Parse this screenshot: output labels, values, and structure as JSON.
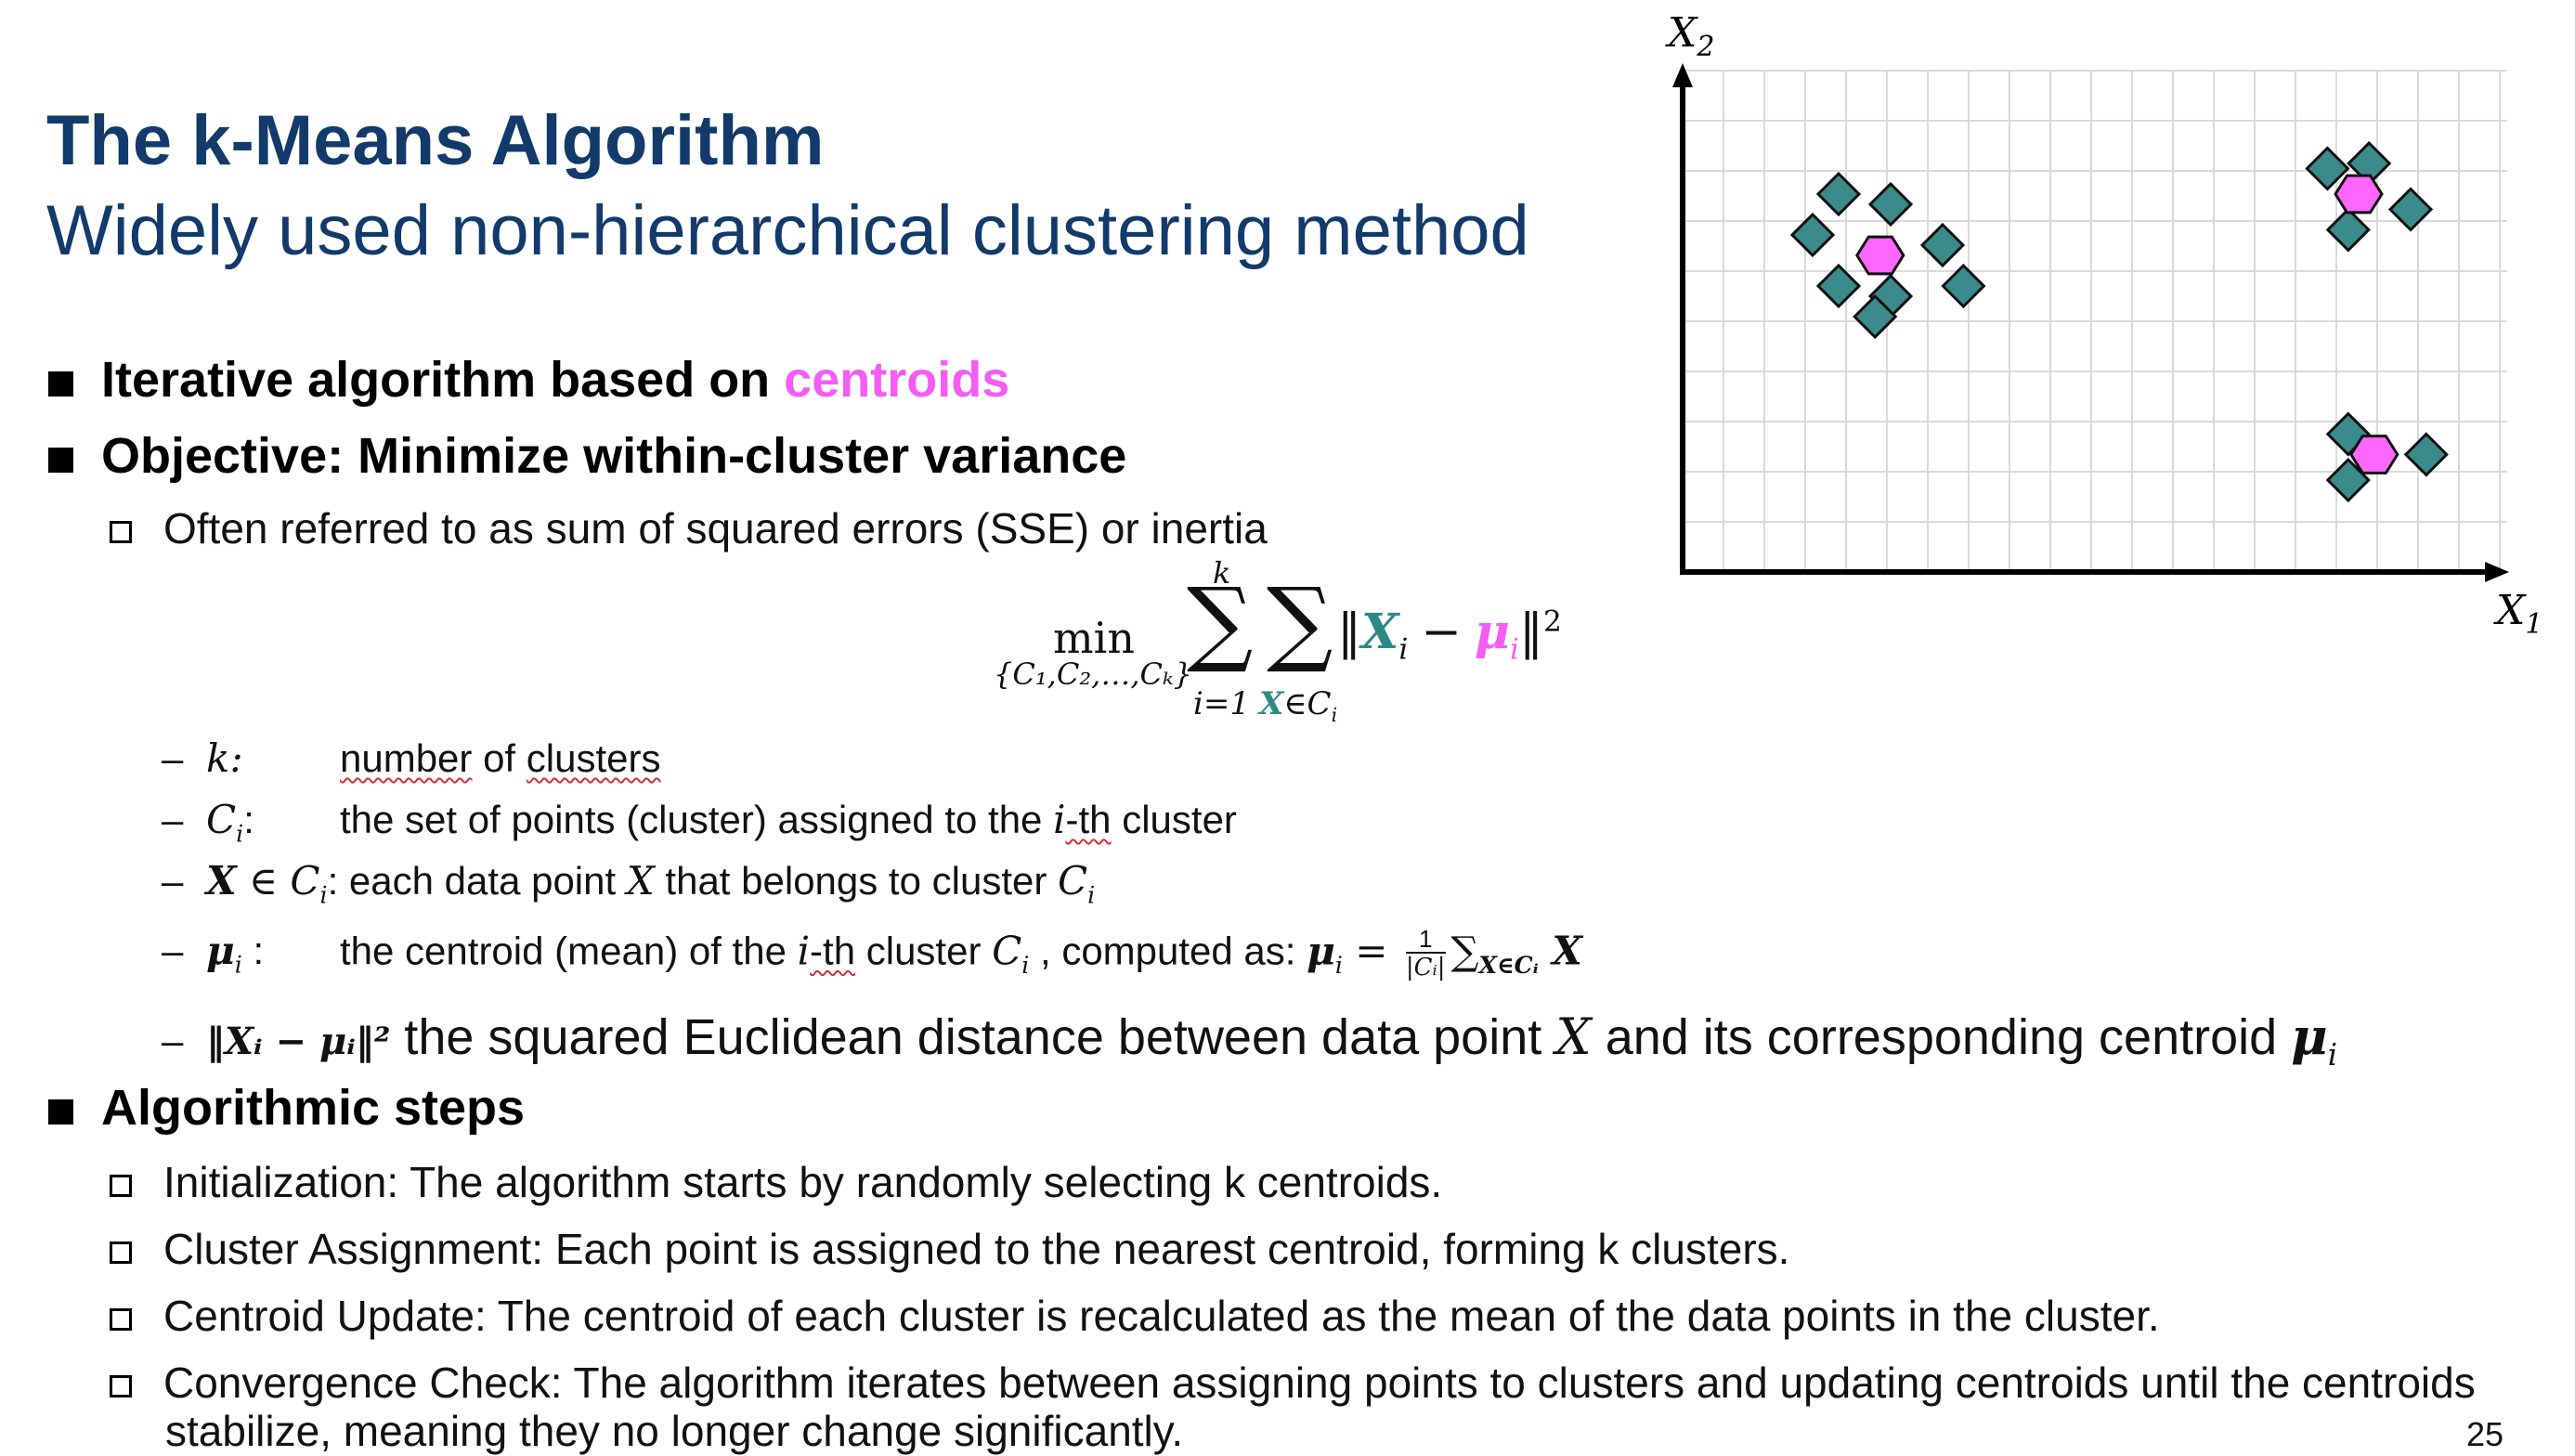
{
  "slide": {
    "title": "The k-Means Algorithm",
    "subtitle": "Widely used non-hierarchical clustering method",
    "page_number": "25"
  },
  "bullets": {
    "b1_prefix": "Iterative algorithm based on ",
    "b1_highlight": "centroids",
    "b2": "Objective: Minimize within-cluster variance",
    "b2_sub": "Often referred to as sum of squared errors (SSE) or inertia",
    "b3": "Algorithmic steps"
  },
  "formula": {
    "min": "min",
    "min_sub": "{C₁,C₂,…,Cₖ}",
    "sum_top": "k",
    "sum_bottom_i": "i=1",
    "sum_bottom_x": "X",
    "sum_bottom_x_rest": "∈C",
    "sum_bottom_x_sub": "i",
    "norm_open": "‖",
    "x": "X",
    "x_sub": "i",
    "minus": "−",
    "mu": "μ",
    "mu_sub": "i",
    "norm_close": "‖",
    "power": "2"
  },
  "definitions": {
    "d1_sym": "k:",
    "d1_text_a": "number",
    "d1_text_b": " of ",
    "d1_text_c": "clusters",
    "d2_sym": "C",
    "d2_sym_sub": "i",
    "d2_colon": ":",
    "d2_text_a": "the set of points (cluster) assigned to the ",
    "d2_text_i": "i",
    "d2_text_th": "-th",
    "d2_text_b": " cluster",
    "d3_sym_x": "X",
    "d3_sym_in": " ∈ ",
    "d3_sym_c": "C",
    "d3_sym_sub": "i",
    "d3_colon": ":",
    "d3_text_a": " each data point ",
    "d3_text_x": "X",
    "d3_text_b": " that belongs to cluster ",
    "d3_text_c": "C",
    "d3_text_sub": "i",
    "d4_sym": "μ",
    "d4_sym_sub": "i",
    "d4_colon": " :",
    "d4_text_a": "the centroid (mean) of the ",
    "d4_text_i": "i",
    "d4_text_th": "-th",
    "d4_text_b": " cluster ",
    "d4_text_c": "C",
    "d4_text_sub": "i",
    "d4_text_d": " , computed as: ",
    "d4_eq_mu": "μ",
    "d4_eq_sub": "i",
    "d4_eq": " = ",
    "d4_frac_num": "1",
    "d4_frac_den": "|Cᵢ|",
    "d4_sum": "∑",
    "d4_sum_sub": "X∈Cᵢ",
    "d4_sum_x": " X",
    "d5_sym": "‖Xᵢ − μᵢ‖²",
    "d5_text_a": " the squared Euclidean distance between data point ",
    "d5_text_x": "X",
    "d5_text_b": " and its corresponding centroid ",
    "d5_text_mu": "μ",
    "d5_text_sub": "i"
  },
  "steps": [
    "Initialization: The algorithm starts by randomly selecting k centroids.",
    "Cluster Assignment: Each point is assigned to the nearest centroid, forming k clusters.",
    "Centroid Update: The centroid of each cluster is recalculated as the mean of the data points in the cluster.",
    "Convergence Check: The algorithm iterates between assigning points to clusters and updating centroids until the centroids",
    "stabilize, meaning they no longer change significantly."
  ],
  "chart": {
    "y_label": "X",
    "y_label_sub": "2",
    "x_label": "X",
    "x_label_sub": "1"
  },
  "colors": {
    "title": "#123a6b",
    "highlight": "#f45cf4",
    "point_fill": "#3b8a8c",
    "centroid_fill": "#ff66ff",
    "formula_x": "#2c8a86"
  },
  "chart_data": {
    "type": "scatter",
    "xlabel": "X1",
    "ylabel": "X2",
    "grid": true,
    "series": [
      {
        "name": "data points",
        "marker": "diamond",
        "points": [
          [
            3.0,
            7.4
          ],
          [
            4.0,
            7.2
          ],
          [
            2.5,
            6.6
          ],
          [
            5.0,
            6.4
          ],
          [
            3.0,
            5.6
          ],
          [
            4.0,
            5.4
          ],
          [
            5.4,
            5.6
          ],
          [
            3.7,
            5.0
          ],
          [
            12.4,
            7.9
          ],
          [
            13.2,
            8.0
          ],
          [
            14.0,
            7.1
          ],
          [
            12.8,
            6.7
          ],
          [
            12.8,
            2.7
          ],
          [
            14.3,
            2.3
          ],
          [
            12.8,
            1.8
          ]
        ],
        "groups": [
          1,
          1,
          1,
          1,
          1,
          1,
          1,
          1,
          2,
          2,
          2,
          2,
          3,
          3,
          3
        ]
      },
      {
        "name": "centroids",
        "marker": "hexagon",
        "points": [
          [
            3.8,
            6.2
          ],
          [
            13.0,
            7.4
          ],
          [
            13.3,
            2.3
          ]
        ]
      }
    ]
  }
}
